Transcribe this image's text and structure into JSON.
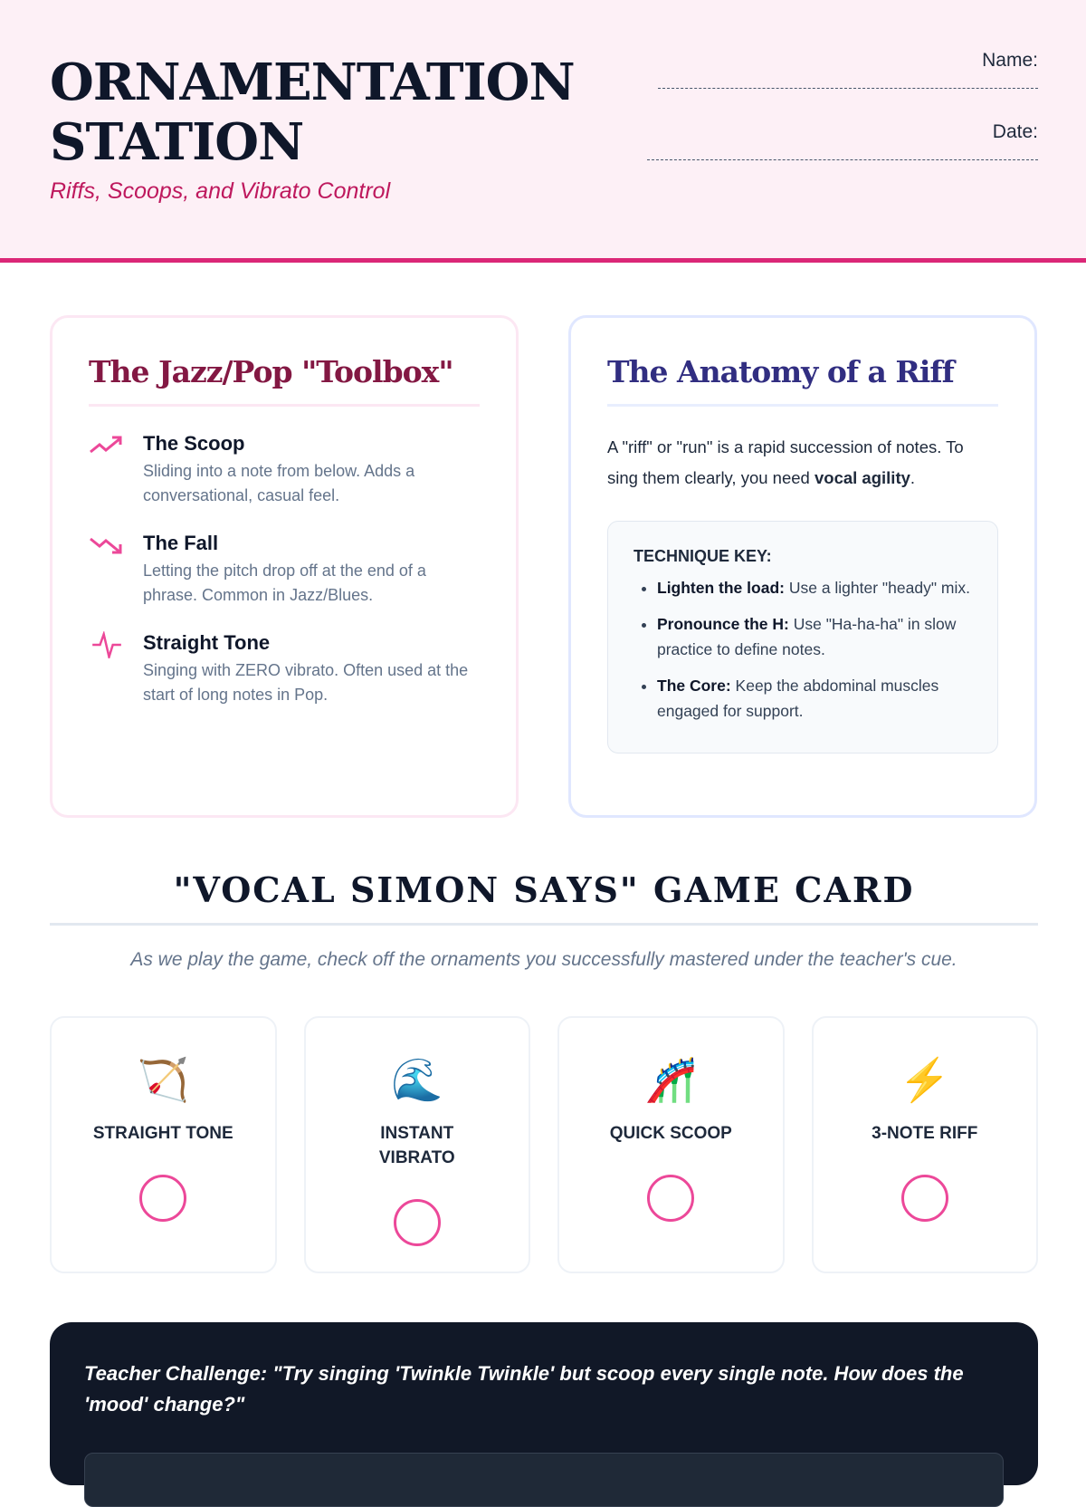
{
  "header": {
    "title": "ORNAMENTATION STATION",
    "subtitle": "Riffs, Scoops, and Vibrato Control",
    "name_label": "Name:",
    "date_label": "Date:"
  },
  "toolbox": {
    "title": "The Jazz/Pop \"Toolbox\"",
    "items": [
      {
        "icon": "trending-up-icon",
        "name": "The Scoop",
        "desc": "Sliding into a note from below. Adds a conversational, casual feel."
      },
      {
        "icon": "trending-down-icon",
        "name": "The Fall",
        "desc": "Letting the pitch drop off at the end of a phrase. Common in Jazz/Blues."
      },
      {
        "icon": "pulse-icon",
        "name": "Straight Tone",
        "desc": "Singing with ZERO vibrato. Often used at the start of long notes in Pop."
      }
    ]
  },
  "anatomy": {
    "title": "The Anatomy of a Riff",
    "intro": "A \"riff\" or \"run\" is a rapid succession of notes. To sing them clearly, you need ",
    "intro_bold": "vocal agility",
    "intro_end": ".",
    "key_title": "TECHNIQUE KEY:",
    "key_items": [
      {
        "bold": "Lighten the load:",
        "text": " Use a lighter \"heady\" mix."
      },
      {
        "bold": "Pronounce the H:",
        "text": " Use \"Ha-ha-ha\" in slow practice to define notes."
      },
      {
        "bold": "The Core:",
        "text": " Keep the abdominal muscles engaged for support."
      }
    ]
  },
  "game": {
    "title": "\"VOCAL SIMON SAYS\" GAME CARD",
    "subtitle": "As we play the game, check off the ornaments you successfully mastered under the teacher's cue.",
    "cards": [
      {
        "emoji": "🏹",
        "label": "STRAIGHT TONE"
      },
      {
        "emoji": "🌊",
        "label": "INSTANT VIBRATO"
      },
      {
        "emoji": "🎢",
        "label": "QUICK SCOOP"
      },
      {
        "emoji": "⚡",
        "label": "3-NOTE RIFF"
      }
    ]
  },
  "teacher": {
    "text": "Teacher Challenge: \"Try singing 'Twinkle Twinkle' but scoop every single note. How does the 'mood' change?\""
  },
  "colors": {
    "accent": "#db2777",
    "dark": "#111827",
    "indigo": "#312e81"
  }
}
